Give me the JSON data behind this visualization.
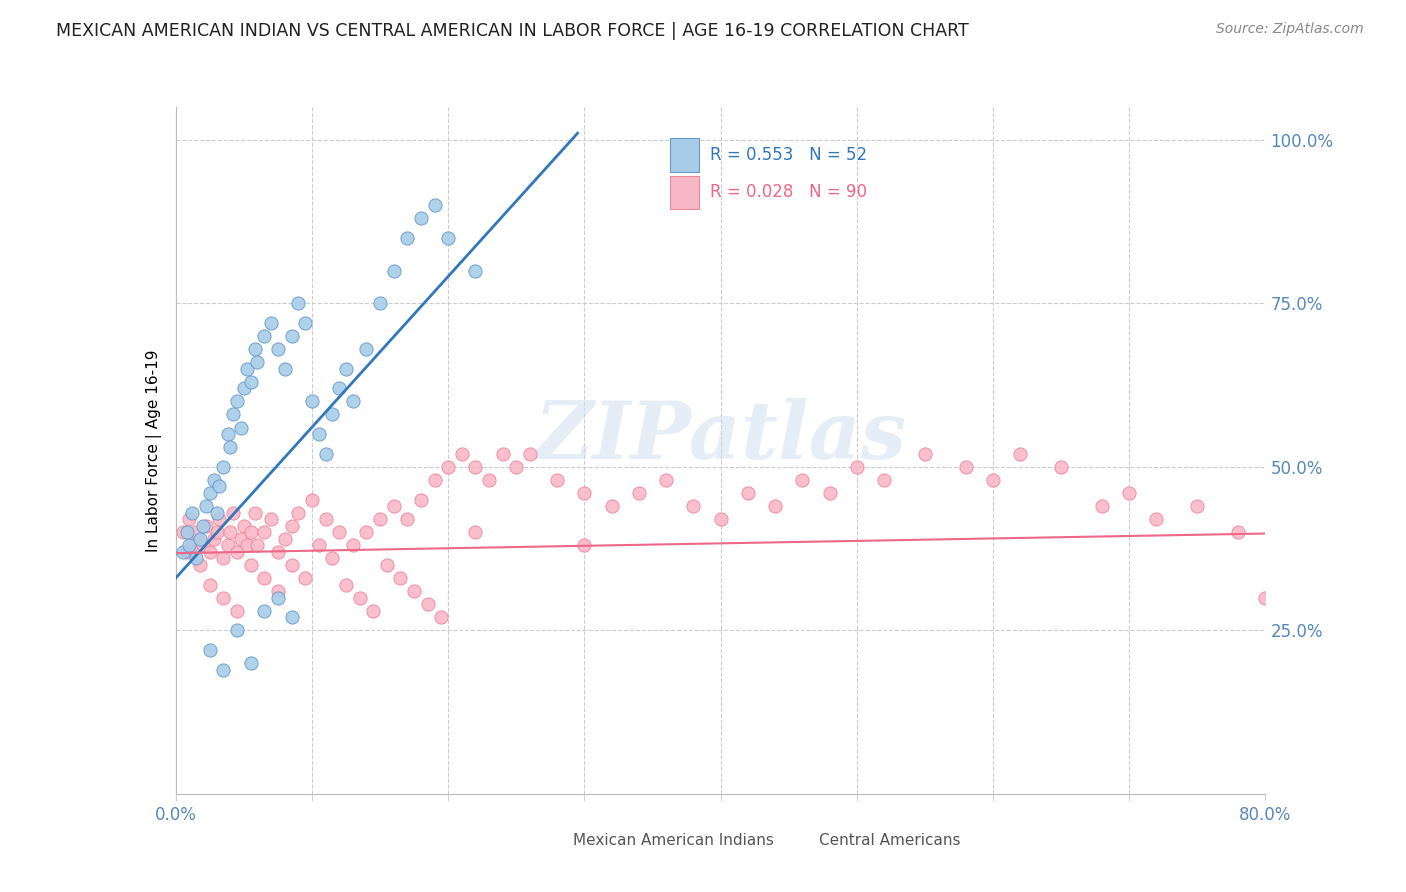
{
  "title": "MEXICAN AMERICAN INDIAN VS CENTRAL AMERICAN IN LABOR FORCE | AGE 16-19 CORRELATION CHART",
  "source": "Source: ZipAtlas.com",
  "ylabel": "In Labor Force | Age 16-19",
  "x_min": 0.0,
  "x_max": 0.8,
  "y_min": 0.0,
  "y_max": 1.05,
  "x_tick_positions": [
    0.0,
    0.1,
    0.2,
    0.3,
    0.4,
    0.5,
    0.6,
    0.7,
    0.8
  ],
  "x_tick_labels": [
    "0.0%",
    "",
    "",
    "",
    "",
    "",
    "",
    "",
    "80.0%"
  ],
  "y_ticks": [
    0.25,
    0.5,
    0.75,
    1.0
  ],
  "y_tick_labels": [
    "25.0%",
    "50.0%",
    "75.0%",
    "100.0%"
  ],
  "blue_R": 0.553,
  "blue_N": 52,
  "pink_R": 0.028,
  "pink_N": 90,
  "blue_color": "#a8cce8",
  "pink_color": "#f9b8c8",
  "blue_edge_color": "#6699cc",
  "pink_edge_color": "#ee8899",
  "blue_line_color": "#3377bb",
  "pink_line_color": "#ee6688",
  "watermark": "ZIPatlas",
  "legend_blue_text": "R = 0.553   N = 52",
  "legend_pink_text": "R = 0.028   N = 90",
  "legend_blue_color": "#3377bb",
  "legend_pink_color": "#ee6688",
  "bottom_legend_blue": "Mexican American Indians",
  "bottom_legend_pink": "Central Americans",
  "blue_line_x": [
    0.0,
    0.295
  ],
  "blue_line_y": [
    0.33,
    1.01
  ],
  "pink_line_x": [
    0.0,
    0.8
  ],
  "pink_line_y": [
    0.368,
    0.398
  ],
  "blue_x": [
    0.005,
    0.008,
    0.01,
    0.012,
    0.015,
    0.018,
    0.02,
    0.022,
    0.025,
    0.028,
    0.03,
    0.032,
    0.035,
    0.038,
    0.04,
    0.042,
    0.045,
    0.048,
    0.05,
    0.052,
    0.055,
    0.058,
    0.06,
    0.065,
    0.07,
    0.075,
    0.08,
    0.085,
    0.09,
    0.095,
    0.1,
    0.105,
    0.11,
    0.115,
    0.12,
    0.125,
    0.13,
    0.14,
    0.15,
    0.16,
    0.17,
    0.18,
    0.19,
    0.2,
    0.22,
    0.025,
    0.035,
    0.045,
    0.055,
    0.065,
    0.075,
    0.085
  ],
  "blue_y": [
    0.37,
    0.4,
    0.38,
    0.43,
    0.36,
    0.39,
    0.41,
    0.44,
    0.46,
    0.48,
    0.43,
    0.47,
    0.5,
    0.55,
    0.53,
    0.58,
    0.6,
    0.56,
    0.62,
    0.65,
    0.63,
    0.68,
    0.66,
    0.7,
    0.72,
    0.68,
    0.65,
    0.7,
    0.75,
    0.72,
    0.6,
    0.55,
    0.52,
    0.58,
    0.62,
    0.65,
    0.6,
    0.68,
    0.75,
    0.8,
    0.85,
    0.88,
    0.9,
    0.85,
    0.8,
    0.22,
    0.19,
    0.25,
    0.2,
    0.28,
    0.3,
    0.27
  ],
  "pink_x": [
    0.005,
    0.008,
    0.01,
    0.012,
    0.015,
    0.018,
    0.02,
    0.022,
    0.025,
    0.028,
    0.03,
    0.032,
    0.035,
    0.038,
    0.04,
    0.042,
    0.045,
    0.048,
    0.05,
    0.052,
    0.055,
    0.058,
    0.06,
    0.065,
    0.07,
    0.075,
    0.08,
    0.085,
    0.09,
    0.1,
    0.11,
    0.12,
    0.13,
    0.14,
    0.15,
    0.16,
    0.17,
    0.18,
    0.19,
    0.2,
    0.21,
    0.22,
    0.23,
    0.24,
    0.25,
    0.26,
    0.28,
    0.3,
    0.32,
    0.34,
    0.36,
    0.38,
    0.4,
    0.42,
    0.44,
    0.46,
    0.48,
    0.5,
    0.52,
    0.55,
    0.58,
    0.6,
    0.62,
    0.65,
    0.68,
    0.7,
    0.72,
    0.75,
    0.78,
    0.8,
    0.025,
    0.035,
    0.045,
    0.055,
    0.065,
    0.075,
    0.085,
    0.095,
    0.105,
    0.115,
    0.125,
    0.135,
    0.145,
    0.155,
    0.165,
    0.175,
    0.185,
    0.195,
    0.22,
    0.3
  ],
  "pink_y": [
    0.4,
    0.37,
    0.42,
    0.38,
    0.4,
    0.35,
    0.38,
    0.41,
    0.37,
    0.39,
    0.4,
    0.42,
    0.36,
    0.38,
    0.4,
    0.43,
    0.37,
    0.39,
    0.41,
    0.38,
    0.4,
    0.43,
    0.38,
    0.4,
    0.42,
    0.37,
    0.39,
    0.41,
    0.43,
    0.45,
    0.42,
    0.4,
    0.38,
    0.4,
    0.42,
    0.44,
    0.42,
    0.45,
    0.48,
    0.5,
    0.52,
    0.5,
    0.48,
    0.52,
    0.5,
    0.52,
    0.48,
    0.46,
    0.44,
    0.46,
    0.48,
    0.44,
    0.42,
    0.46,
    0.44,
    0.48,
    0.46,
    0.5,
    0.48,
    0.52,
    0.5,
    0.48,
    0.52,
    0.5,
    0.44,
    0.46,
    0.42,
    0.44,
    0.4,
    0.3,
    0.32,
    0.3,
    0.28,
    0.35,
    0.33,
    0.31,
    0.35,
    0.33,
    0.38,
    0.36,
    0.32,
    0.3,
    0.28,
    0.35,
    0.33,
    0.31,
    0.29,
    0.27,
    0.4,
    0.38
  ]
}
